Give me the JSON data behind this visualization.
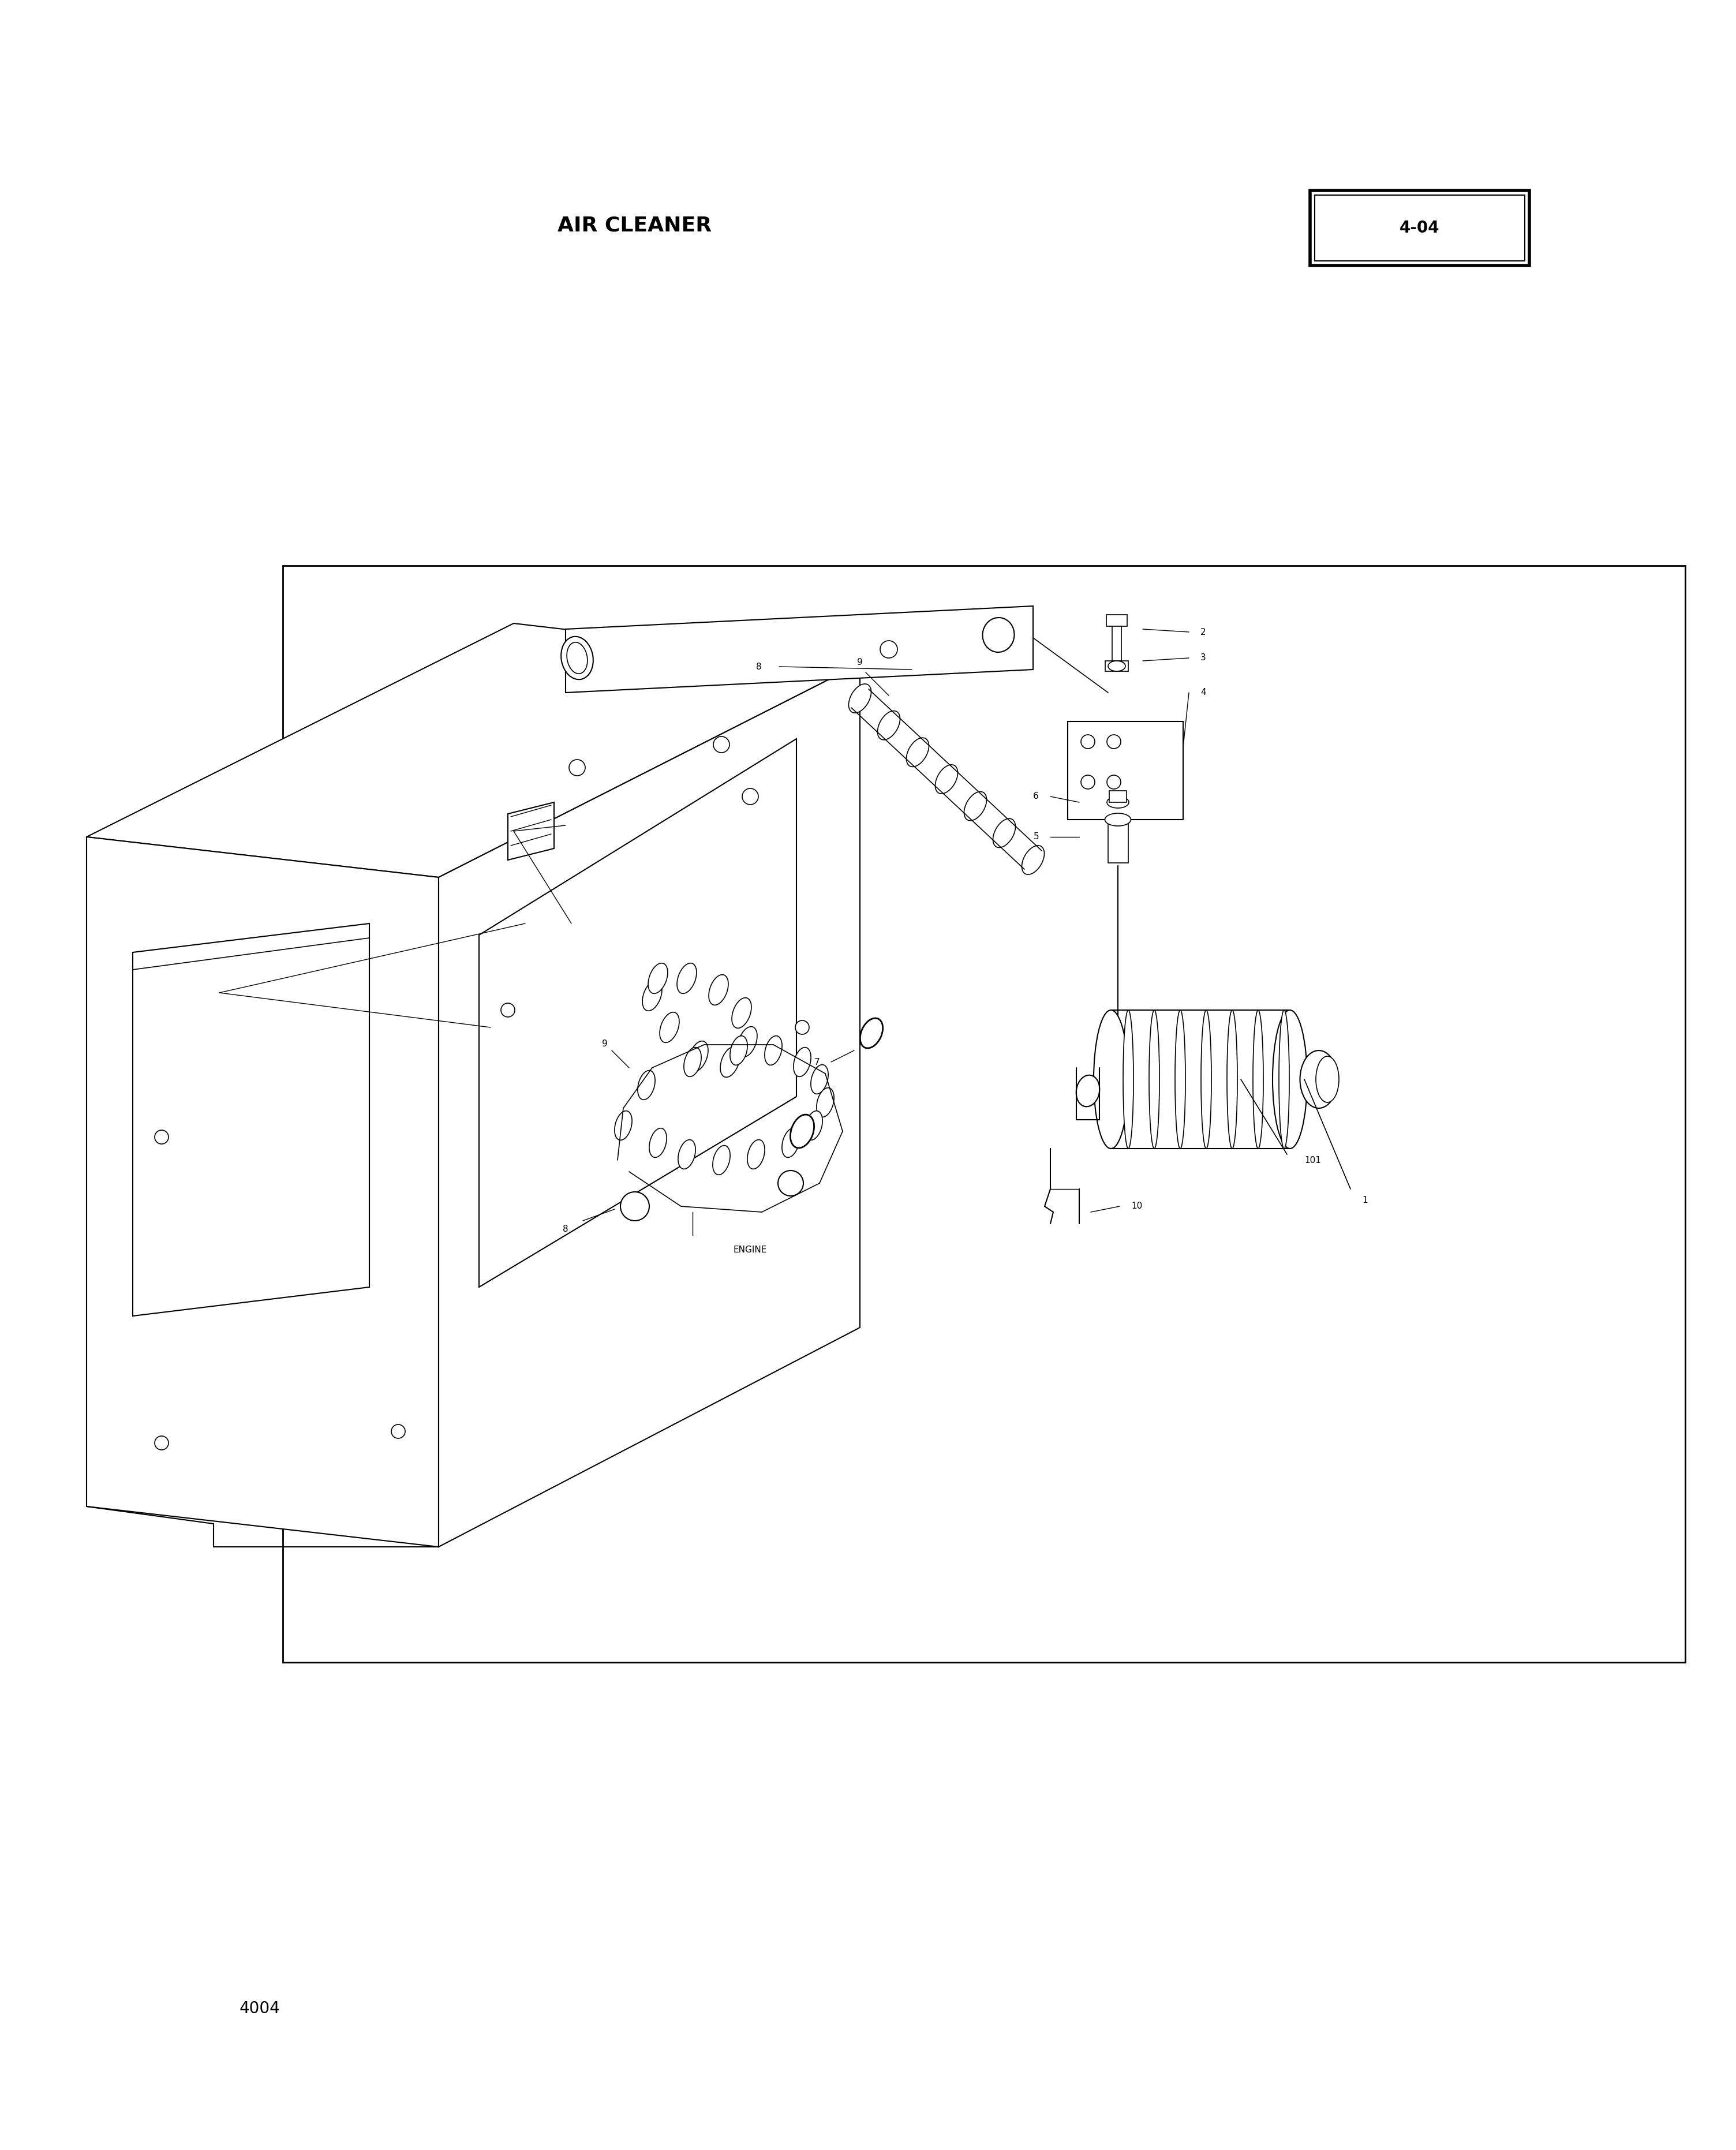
{
  "title": "AIR CLEANER",
  "page_code": "4-04",
  "page_number": "4004",
  "background_color": "#ffffff",
  "line_color": "#000000",
  "fig_width": 30.08,
  "fig_height": 37.25,
  "title_fontsize": 26,
  "code_fontsize": 20,
  "label_fontsize": 11,
  "engine_fontsize": 11
}
